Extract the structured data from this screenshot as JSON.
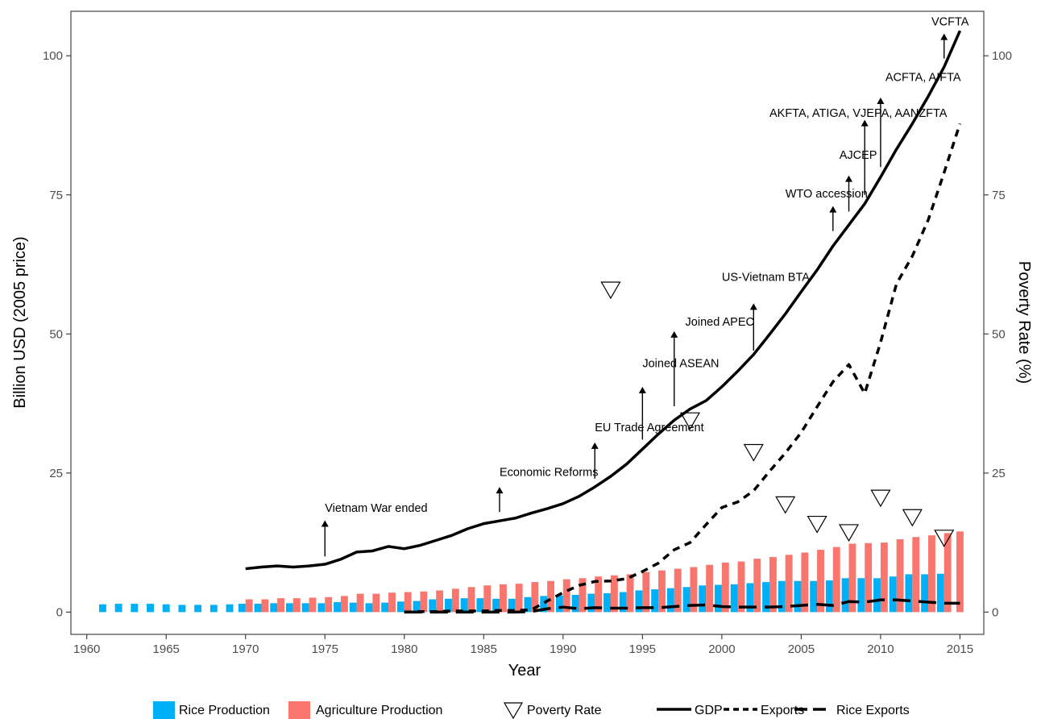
{
  "chart_data": {
    "type": "bar+line",
    "xlabel": "Year",
    "ylabel": "Billion USD (2005 price)",
    "ylabel_right": "Poverty Rate (%)",
    "xlim": [
      1959,
      2016.5
    ],
    "ylim": [
      -4,
      108
    ],
    "xticks": [
      1960,
      1965,
      1970,
      1975,
      1980,
      1985,
      1990,
      1995,
      2000,
      2005,
      2010,
      2015
    ],
    "yticks": [
      0,
      25,
      50,
      75,
      100
    ],
    "grid": false,
    "legend_position": "bottom",
    "colors": {
      "rice_production": "#00b0f6",
      "agriculture_production": "#f8766d",
      "lines": "#000000"
    },
    "legend": [
      {
        "key": "rice",
        "label": "Rice Production"
      },
      {
        "key": "agri",
        "label": "Agriculture Production"
      },
      {
        "key": "poverty",
        "label": "Poverty Rate"
      },
      {
        "key": "gdp",
        "label": "GDP"
      },
      {
        "key": "exports",
        "label": "Exports"
      },
      {
        "key": "rice_exports",
        "label": "Rice Exports"
      }
    ],
    "bars": {
      "rice_production": {
        "name": "Rice Production",
        "x": [
          1961,
          1962,
          1963,
          1964,
          1965,
          1966,
          1967,
          1968,
          1969,
          1970,
          1971,
          1972,
          1973,
          1974,
          1975,
          1976,
          1977,
          1978,
          1979,
          1980,
          1981,
          1982,
          1983,
          1984,
          1985,
          1986,
          1987,
          1988,
          1989,
          1990,
          1991,
          1992,
          1993,
          1994,
          1995,
          1996,
          1997,
          1998,
          1999,
          2000,
          2001,
          2002,
          2003,
          2004,
          2005,
          2006,
          2007,
          2008,
          2009,
          2010,
          2011,
          2012,
          2013,
          2014
        ],
        "y": [
          1.4,
          1.5,
          1.5,
          1.5,
          1.4,
          1.3,
          1.3,
          1.3,
          1.4,
          1.5,
          1.5,
          1.6,
          1.6,
          1.6,
          1.6,
          1.8,
          1.7,
          1.6,
          1.7,
          1.9,
          2.0,
          2.3,
          2.4,
          2.5,
          2.5,
          2.4,
          2.4,
          2.7,
          2.9,
          3.0,
          3.1,
          3.3,
          3.4,
          3.6,
          3.9,
          4.1,
          4.3,
          4.5,
          4.8,
          4.9,
          5.0,
          5.2,
          5.4,
          5.6,
          5.6,
          5.6,
          5.7,
          6.1,
          6.1,
          6.1,
          6.4,
          6.8,
          6.8,
          6.9
        ]
      },
      "agriculture_production": {
        "name": "Agriculture Production",
        "x": [
          1970,
          1971,
          1972,
          1973,
          1974,
          1975,
          1976,
          1977,
          1978,
          1979,
          1980,
          1981,
          1982,
          1983,
          1984,
          1985,
          1986,
          1987,
          1988,
          1989,
          1990,
          1991,
          1992,
          1993,
          1994,
          1995,
          1996,
          1997,
          1998,
          1999,
          2000,
          2001,
          2002,
          2003,
          2004,
          2005,
          2006,
          2007,
          2008,
          2009,
          2010,
          2011,
          2012,
          2013,
          2014,
          2015
        ],
        "y": [
          2.3,
          2.3,
          2.5,
          2.5,
          2.6,
          2.7,
          2.9,
          3.3,
          3.3,
          3.5,
          3.6,
          3.7,
          3.9,
          4.2,
          4.5,
          4.8,
          5.0,
          5.1,
          5.4,
          5.6,
          5.9,
          6.1,
          6.4,
          6.6,
          6.8,
          7.2,
          7.5,
          7.8,
          8.1,
          8.5,
          8.9,
          9.1,
          9.6,
          9.9,
          10.3,
          10.7,
          11.2,
          11.7,
          12.3,
          12.4,
          12.5,
          13.1,
          13.5,
          13.8,
          14.2,
          14.5
        ]
      }
    },
    "series": [
      {
        "key": "gdp",
        "name": "GDP",
        "x": [
          1970,
          1971,
          1972,
          1973,
          1974,
          1975,
          1976,
          1977,
          1978,
          1979,
          1980,
          1981,
          1982,
          1983,
          1984,
          1985,
          1986,
          1987,
          1988,
          1989,
          1990,
          1991,
          1992,
          1993,
          1994,
          1995,
          1996,
          1997,
          1998,
          1999,
          2000,
          2001,
          2002,
          2003,
          2004,
          2005,
          2006,
          2007,
          2008,
          2009,
          2010,
          2011,
          2012,
          2013,
          2014,
          2015
        ],
        "y": [
          7.8,
          8.1,
          8.3,
          8.1,
          8.3,
          8.6,
          9.5,
          10.8,
          11.0,
          11.8,
          11.4,
          12.0,
          12.9,
          13.8,
          15.0,
          15.9,
          16.4,
          16.9,
          17.8,
          18.6,
          19.5,
          20.8,
          22.5,
          24.4,
          26.6,
          29.3,
          32.0,
          34.5,
          36.5,
          38.0,
          40.5,
          43.3,
          46.3,
          49.9,
          53.6,
          57.6,
          61.5,
          65.8,
          69.6,
          73.4,
          78.2,
          83.2,
          87.8,
          92.7,
          98.0,
          104.5
        ]
      },
      {
        "key": "exports",
        "name": "Exports",
        "x": [
          1980,
          1981,
          1982,
          1983,
          1984,
          1985,
          1986,
          1987,
          1988,
          1989,
          1990,
          1991,
          1992,
          1993,
          1994,
          1995,
          1996,
          1997,
          1998,
          1999,
          2000,
          2001,
          2002,
          2003,
          2004,
          2005,
          2006,
          2007,
          2008,
          2009,
          2010,
          2011,
          2012,
          2013,
          2014,
          2015
        ],
        "y": [
          0.0,
          0.1,
          0.1,
          0.2,
          0.2,
          0.2,
          0.3,
          0.3,
          0.4,
          2.0,
          3.5,
          4.8,
          5.5,
          5.6,
          6.0,
          7.3,
          8.8,
          11.2,
          12.5,
          15.7,
          18.8,
          19.8,
          21.8,
          25.3,
          28.6,
          32.3,
          36.9,
          41.4,
          44.5,
          39.3,
          48.5,
          59.0,
          64.0,
          70.5,
          79.0,
          87.8
        ]
      },
      {
        "key": "rice_exports",
        "name": "Rice Exports",
        "x": [
          1980,
          1981,
          1982,
          1983,
          1984,
          1985,
          1986,
          1987,
          1988,
          1989,
          1990,
          1991,
          1992,
          1993,
          1994,
          1995,
          1996,
          1997,
          1998,
          1999,
          2000,
          2001,
          2002,
          2003,
          2004,
          2005,
          2006,
          2007,
          2008,
          2009,
          2010,
          2011,
          2012,
          2013,
          2014,
          2015
        ],
        "y": [
          0.0,
          0.0,
          0.0,
          0.0,
          0.0,
          0.0,
          0.0,
          0.0,
          0.1,
          0.6,
          0.9,
          0.6,
          0.8,
          0.7,
          0.7,
          0.8,
          0.8,
          1.0,
          1.2,
          1.3,
          1.0,
          0.9,
          0.9,
          0.9,
          1.0,
          1.2,
          1.4,
          1.2,
          1.9,
          1.8,
          2.2,
          2.2,
          2.0,
          1.8,
          1.6,
          1.6
        ]
      }
    ],
    "poverty_rate": {
      "name": "Poverty Rate",
      "x": [
        1993,
        1998,
        2002,
        2004,
        2006,
        2008,
        2010,
        2012,
        2014
      ],
      "y": [
        58.1,
        34.6,
        28.9,
        19.5,
        16.0,
        14.5,
        20.7,
        17.2,
        13.5
      ]
    },
    "annotations": [
      {
        "text": "Vietnam War ended",
        "label_x": 1975,
        "label_y": 18.0,
        "arrow_x": 1975,
        "arrow_from": 10.0,
        "arrow_to": 16.5
      },
      {
        "text": "Economic Reforms",
        "label_x": 1986,
        "label_y": 24.5,
        "arrow_x": 1986,
        "arrow_from": 18.0,
        "arrow_to": 22.5
      },
      {
        "text": "EU Trade Agreement",
        "label_x": 1992,
        "label_y": 32.5,
        "arrow_x": 1992,
        "arrow_from": 24.0,
        "arrow_to": 30.5
      },
      {
        "text": "Joined ASEAN",
        "label_x": 1995,
        "label_y": 44.0,
        "arrow_x": 1995,
        "arrow_from": 31.0,
        "arrow_to": 40.5
      },
      {
        "text": "Joined APEC",
        "label_x": 1997.7,
        "label_y": 51.5,
        "arrow_x": 1997,
        "arrow_from": 37.0,
        "arrow_to": 50.5
      },
      {
        "text": "US-Vietnam BTA",
        "label_x": 2000,
        "label_y": 59.5,
        "arrow_x": 2002,
        "arrow_from": 47.0,
        "arrow_to": 55.5
      },
      {
        "text": "WTO accession",
        "label_x": 2004,
        "label_y": 74.5,
        "arrow_x": 2007,
        "arrow_from": 68.5,
        "arrow_to": 73.0
      },
      {
        "text": "AJCEP",
        "label_x": 2007.4,
        "label_y": 81.5,
        "arrow_x": 2008,
        "arrow_from": 72.0,
        "arrow_to": 78.5
      },
      {
        "text": "AKFTA, ATIGA, VJEPA, AANZFTA",
        "label_x": 2003,
        "label_y": 89.0,
        "arrow_x": 2009,
        "arrow_from": 75.0,
        "arrow_to": 88.5
      },
      {
        "text": "ACFTA, AIFTA",
        "label_x": 2010.3,
        "label_y": 95.5,
        "arrow_x": 2010,
        "arrow_from": 80.0,
        "arrow_to": 92.5
      },
      {
        "text": "VCFTA",
        "label_x": 2013.2,
        "label_y": 105.5,
        "arrow_x": 2014,
        "arrow_from": 99.5,
        "arrow_to": 104.0
      }
    ]
  }
}
